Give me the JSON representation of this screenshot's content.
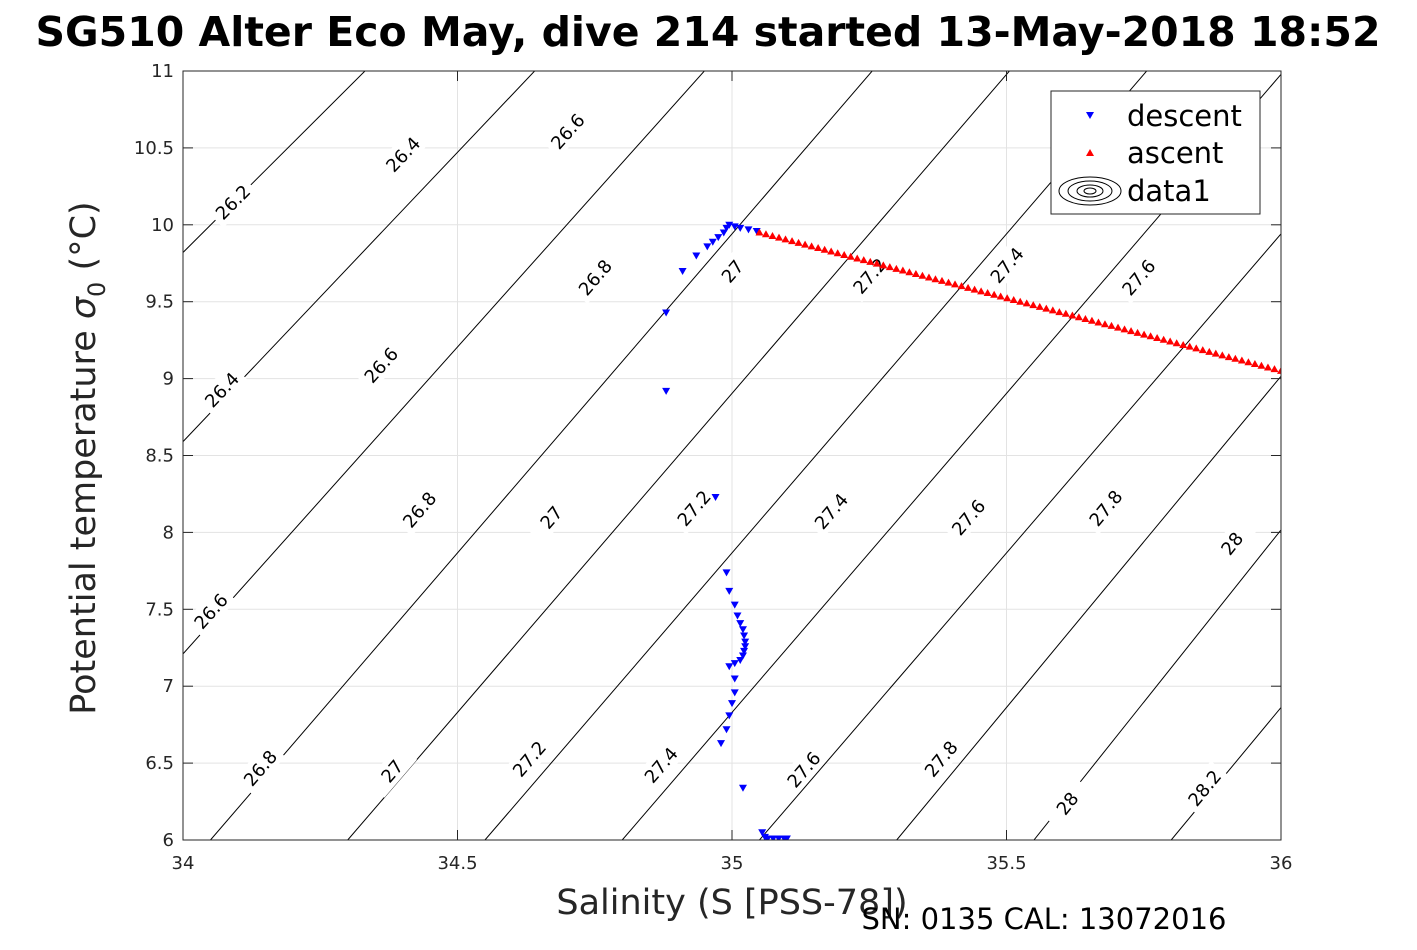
{
  "chart_data": {
    "type": "scatter",
    "title": "SG510 Alter Eco May, dive 214 started 13-May-2018 18:52",
    "xlabel": "Salinity (S [PSS-78])",
    "ylabel_main": "Potential temperature ",
    "ylabel_sigma": "σ",
    "ylabel_sub": "0",
    "ylabel_unit": " (°C)",
    "footer": "SN: 0135  CAL: 13072016",
    "xlim": [
      34,
      36
    ],
    "ylim": [
      6,
      11
    ],
    "xticks": [
      34,
      34.5,
      35,
      35.5,
      36
    ],
    "xtick_labels": [
      "34",
      "34.5",
      "35",
      "35.5",
      "36"
    ],
    "yticks": [
      6,
      6.5,
      7,
      7.5,
      8,
      8.5,
      9,
      9.5,
      10,
      10.5,
      11
    ],
    "ytick_labels": [
      "6",
      "6.5",
      "7",
      "7.5",
      "8",
      "8.5",
      "9",
      "9.5",
      "10",
      "10.5",
      "11"
    ],
    "grid": true,
    "legend_position": "top-right",
    "legend": [
      "descent",
      "ascent",
      "data1"
    ],
    "colors": {
      "descent": "#0000ff",
      "ascent": "#ff0000",
      "contour": "#000000",
      "grid": "#e3e3e3",
      "axis": "#262626"
    },
    "contours": [
      {
        "level": "26.2",
        "points": [
          [
            34,
            9.82
          ],
          [
            34.5,
            11.6
          ]
        ],
        "labels": [
          [
            34.09,
            10.15
          ]
        ]
      },
      {
        "level": "26.4",
        "points": [
          [
            34,
            8.59
          ],
          [
            34.8,
            11.6
          ]
        ],
        "labels": [
          [
            34.07,
            8.93
          ],
          [
            34.4,
            10.46
          ]
        ]
      },
      {
        "level": "26.6",
        "points": [
          [
            34,
            7.21
          ],
          [
            35.1,
            11.6
          ]
        ],
        "labels": [
          [
            34.05,
            7.49
          ],
          [
            34.36,
            9.09
          ],
          [
            34.7,
            10.61
          ]
        ]
      },
      {
        "level": "26.8",
        "points": [
          [
            34.05,
            6
          ],
          [
            35.4,
            11.6
          ]
        ],
        "labels": [
          [
            34.14,
            6.47
          ],
          [
            34.43,
            8.15
          ],
          [
            34.75,
            9.66
          ]
        ]
      },
      {
        "level": "27",
        "points": [
          [
            34.3,
            6
          ],
          [
            35.65,
            11.6
          ]
        ],
        "labels": [
          [
            34.38,
            6.45
          ],
          [
            34.67,
            8.1
          ],
          [
            35,
            9.7
          ]
        ]
      },
      {
        "level": "27.2",
        "points": [
          [
            34.55,
            6
          ],
          [
            35.9,
            11.6
          ]
        ],
        "labels": [
          [
            34.63,
            6.53
          ],
          [
            34.93,
            8.16
          ],
          [
            35.25,
            9.67
          ]
        ]
      },
      {
        "level": "27.4",
        "points": [
          [
            34.8,
            6
          ],
          [
            36.15,
            11.6
          ]
        ],
        "labels": [
          [
            34.87,
            6.49
          ],
          [
            35.18,
            8.14
          ],
          [
            35.5,
            9.74
          ]
        ]
      },
      {
        "level": "27.6",
        "points": [
          [
            35.05,
            6
          ],
          [
            36.4,
            11.6
          ]
        ],
        "labels": [
          [
            35.13,
            6.46
          ],
          [
            35.43,
            8.1
          ],
          [
            35.74,
            9.66
          ]
        ]
      },
      {
        "level": "27.8",
        "points": [
          [
            35.3,
            6
          ],
          [
            36.6,
            11.6
          ]
        ],
        "labels": [
          [
            35.38,
            6.53
          ],
          [
            35.68,
            8.16
          ]
        ]
      },
      {
        "level": "28",
        "points": [
          [
            35.55,
            6
          ],
          [
            36.8,
            11.6
          ]
        ],
        "labels": [
          [
            35.61,
            6.24
          ],
          [
            35.91,
            7.93
          ]
        ]
      },
      {
        "level": "28.2",
        "points": [
          [
            35.8,
            6
          ],
          [
            37.1,
            11.6
          ]
        ],
        "labels": [
          [
            35.86,
            6.34
          ]
        ]
      }
    ],
    "series": [
      {
        "name": "descent",
        "marker": "triangle-down",
        "color": "#0000ff",
        "points": [
          [
            34.88,
            8.92
          ],
          [
            34.88,
            9.43
          ],
          [
            34.91,
            9.7
          ],
          [
            34.935,
            9.8
          ],
          [
            34.955,
            9.86
          ],
          [
            34.965,
            9.89
          ],
          [
            34.975,
            9.92
          ],
          [
            34.985,
            9.95
          ],
          [
            34.99,
            9.98
          ],
          [
            34.995,
            10.0
          ],
          [
            35.005,
            9.99
          ],
          [
            35.015,
            9.98
          ],
          [
            35.03,
            9.97
          ],
          [
            35.045,
            9.96
          ],
          [
            34.97,
            8.23
          ],
          [
            34.99,
            7.74
          ],
          [
            34.995,
            7.62
          ],
          [
            35.005,
            7.53
          ],
          [
            35.01,
            7.46
          ],
          [
            35.015,
            7.41
          ],
          [
            35.02,
            7.37
          ],
          [
            35.022,
            7.33
          ],
          [
            35.024,
            7.29
          ],
          [
            35.024,
            7.26
          ],
          [
            35.022,
            7.23
          ],
          [
            35.02,
            7.2
          ],
          [
            35.015,
            7.17
          ],
          [
            35.005,
            7.15
          ],
          [
            34.995,
            7.13
          ],
          [
            35.005,
            7.05
          ],
          [
            35.005,
            6.96
          ],
          [
            35.0,
            6.89
          ],
          [
            34.995,
            6.81
          ],
          [
            34.99,
            6.72
          ],
          [
            34.98,
            6.63
          ],
          [
            35.02,
            6.34
          ],
          [
            35.055,
            6.05
          ],
          [
            35.06,
            6.02
          ],
          [
            35.065,
            6.01
          ],
          [
            35.075,
            6.01
          ],
          [
            35.085,
            6.01
          ],
          [
            35.095,
            6.01
          ],
          [
            35.1,
            6.01
          ]
        ]
      },
      {
        "name": "ascent",
        "marker": "triangle-up",
        "color": "#ff0000",
        "line": {
          "from": [
            35.05,
            9.95
          ],
          "to": [
            36,
            9.05
          ],
          "count": 80
        }
      }
    ]
  }
}
